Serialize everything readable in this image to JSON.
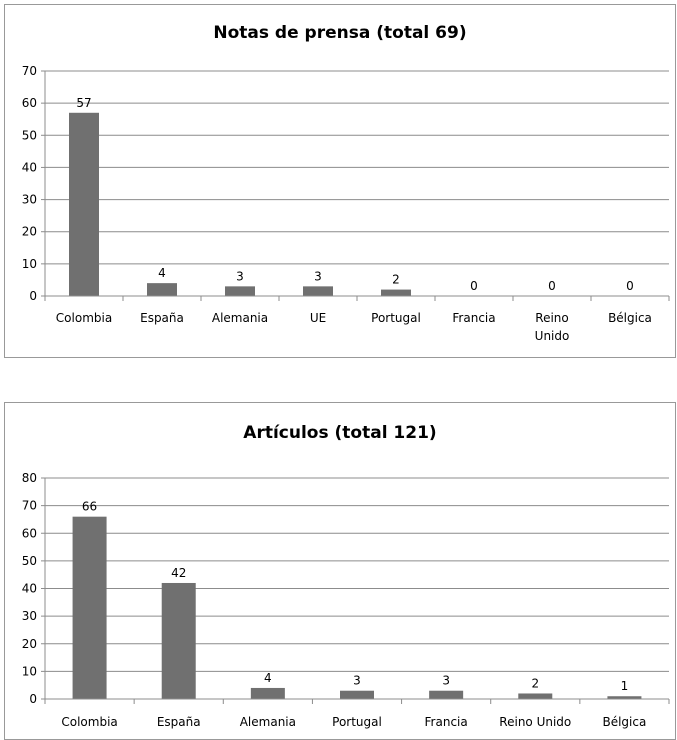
{
  "chart_data": [
    {
      "type": "bar",
      "title": "Notas de prensa (total 69)",
      "categories": [
        "Colombia",
        "España",
        "Alemania",
        "UE",
        "Portugal",
        "Francia",
        "Reino Unido",
        "Bélgica"
      ],
      "values": [
        57,
        4,
        3,
        3,
        2,
        0,
        0,
        0
      ],
      "ylim": [
        0,
        70
      ],
      "yticks": [
        0,
        10,
        20,
        30,
        40,
        50,
        60,
        70
      ],
      "grid": true,
      "bar_color": "#707070"
    },
    {
      "type": "bar",
      "title": "Artículos (total 121)",
      "categories": [
        "Colombia",
        "España",
        "Alemania",
        "Portugal",
        "Francia",
        "Reino Unido",
        "Bélgica"
      ],
      "values": [
        66,
        42,
        4,
        3,
        3,
        2,
        1
      ],
      "ylim": [
        0,
        80
      ],
      "yticks": [
        0,
        10,
        20,
        30,
        40,
        50,
        60,
        70,
        80
      ],
      "grid": true,
      "bar_color": "#707070"
    }
  ]
}
